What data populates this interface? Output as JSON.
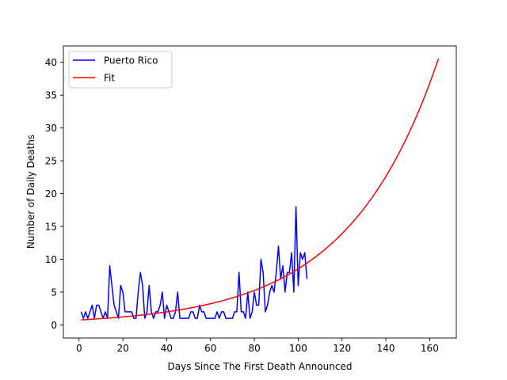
{
  "chart_data": {
    "type": "line",
    "title": "",
    "xlabel": "Days Since The First Death Announced",
    "ylabel": "Number of Daily Deaths",
    "xlim": [
      -7.15,
      172.15
    ],
    "ylim": [
      -2.0,
      42.5
    ],
    "xticks": [
      0,
      20,
      40,
      60,
      80,
      100,
      120,
      140,
      160
    ],
    "yticks": [
      0,
      5,
      10,
      15,
      20,
      25,
      30,
      35,
      40
    ],
    "legend": {
      "placement": "top-left",
      "entries": [
        "Puerto Rico",
        "Fit"
      ]
    },
    "grid": false,
    "series": [
      {
        "name": "Puerto Rico",
        "color": "#0000ff",
        "x": [
          1,
          2,
          3,
          4,
          5,
          6,
          7,
          8,
          9,
          10,
          11,
          12,
          13,
          14,
          15,
          16,
          17,
          18,
          19,
          20,
          21,
          22,
          23,
          24,
          25,
          26,
          27,
          28,
          29,
          30,
          31,
          32,
          33,
          34,
          35,
          36,
          37,
          38,
          39,
          40,
          41,
          42,
          43,
          44,
          45,
          46,
          47,
          48,
          49,
          50,
          51,
          52,
          53,
          54,
          55,
          56,
          57,
          58,
          59,
          60,
          61,
          62,
          63,
          64,
          65,
          66,
          67,
          68,
          69,
          70,
          71,
          72,
          73,
          74,
          75,
          76,
          77,
          78,
          79,
          80,
          81,
          82,
          83,
          84,
          85,
          86,
          87,
          88,
          89,
          90,
          91,
          92,
          93,
          94,
          95,
          96,
          97,
          98,
          99,
          100,
          101,
          102,
          103,
          104
        ],
        "y": [
          2,
          1,
          2,
          1,
          2,
          3,
          1,
          3,
          3,
          2,
          1,
          2,
          1,
          9,
          6,
          3,
          2,
          1,
          6,
          5,
          2,
          2,
          2,
          2,
          1,
          1,
          5,
          8,
          6,
          1,
          2,
          6,
          2,
          1,
          2,
          2,
          3,
          5,
          1,
          3,
          2,
          1,
          1,
          2,
          5,
          1,
          1,
          1,
          1,
          1,
          2,
          2,
          1,
          1,
          3,
          2,
          2,
          1,
          1,
          1,
          1,
          1,
          2,
          1,
          2,
          2,
          1,
          1,
          1,
          1,
          2,
          2,
          8,
          2,
          2,
          1,
          5,
          1,
          2,
          5,
          3,
          3,
          10,
          8,
          2,
          3,
          5,
          6,
          5,
          8,
          12,
          7,
          9,
          5,
          8,
          8,
          11,
          5,
          18,
          6,
          11,
          10,
          11,
          7
        ]
      },
      {
        "name": "Fit",
        "color": "#ff0000",
        "fit": {
          "a": 0.75,
          "b": 0.02433,
          "x_start": 1,
          "x_end": 164
        }
      }
    ]
  }
}
